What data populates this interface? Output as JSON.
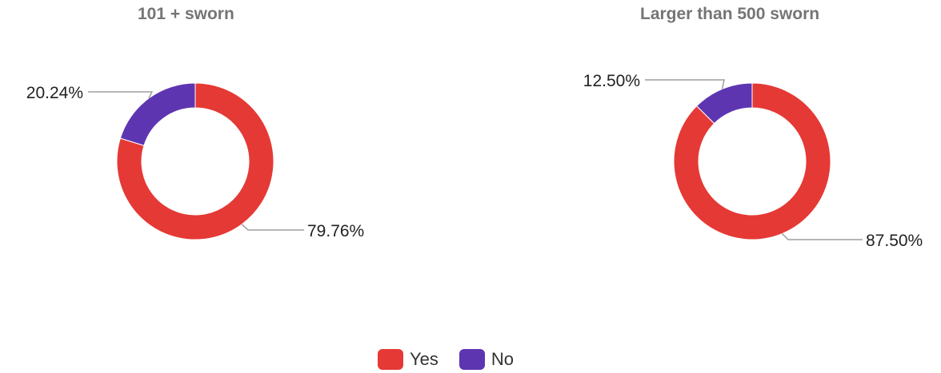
{
  "colors": {
    "yes": "#e53935",
    "no": "#5e35b1",
    "leader": "#9e9e9e"
  },
  "legend": {
    "position": "bottom-center",
    "items": [
      {
        "label": "Yes",
        "color": "#e53935"
      },
      {
        "label": "No",
        "color": "#5e35b1"
      }
    ]
  },
  "chart_data": [
    {
      "type": "donut",
      "title": "101 + sworn",
      "categories": [
        "Yes",
        "No"
      ],
      "values": [
        79.76,
        20.24
      ],
      "labels": [
        "79.76%",
        "20.24%"
      ]
    },
    {
      "type": "donut",
      "title": "Larger than 500 sworn",
      "categories": [
        "Yes",
        "No"
      ],
      "values": [
        87.5,
        12.5
      ],
      "labels": [
        "87.50%",
        "12.50%"
      ]
    }
  ]
}
